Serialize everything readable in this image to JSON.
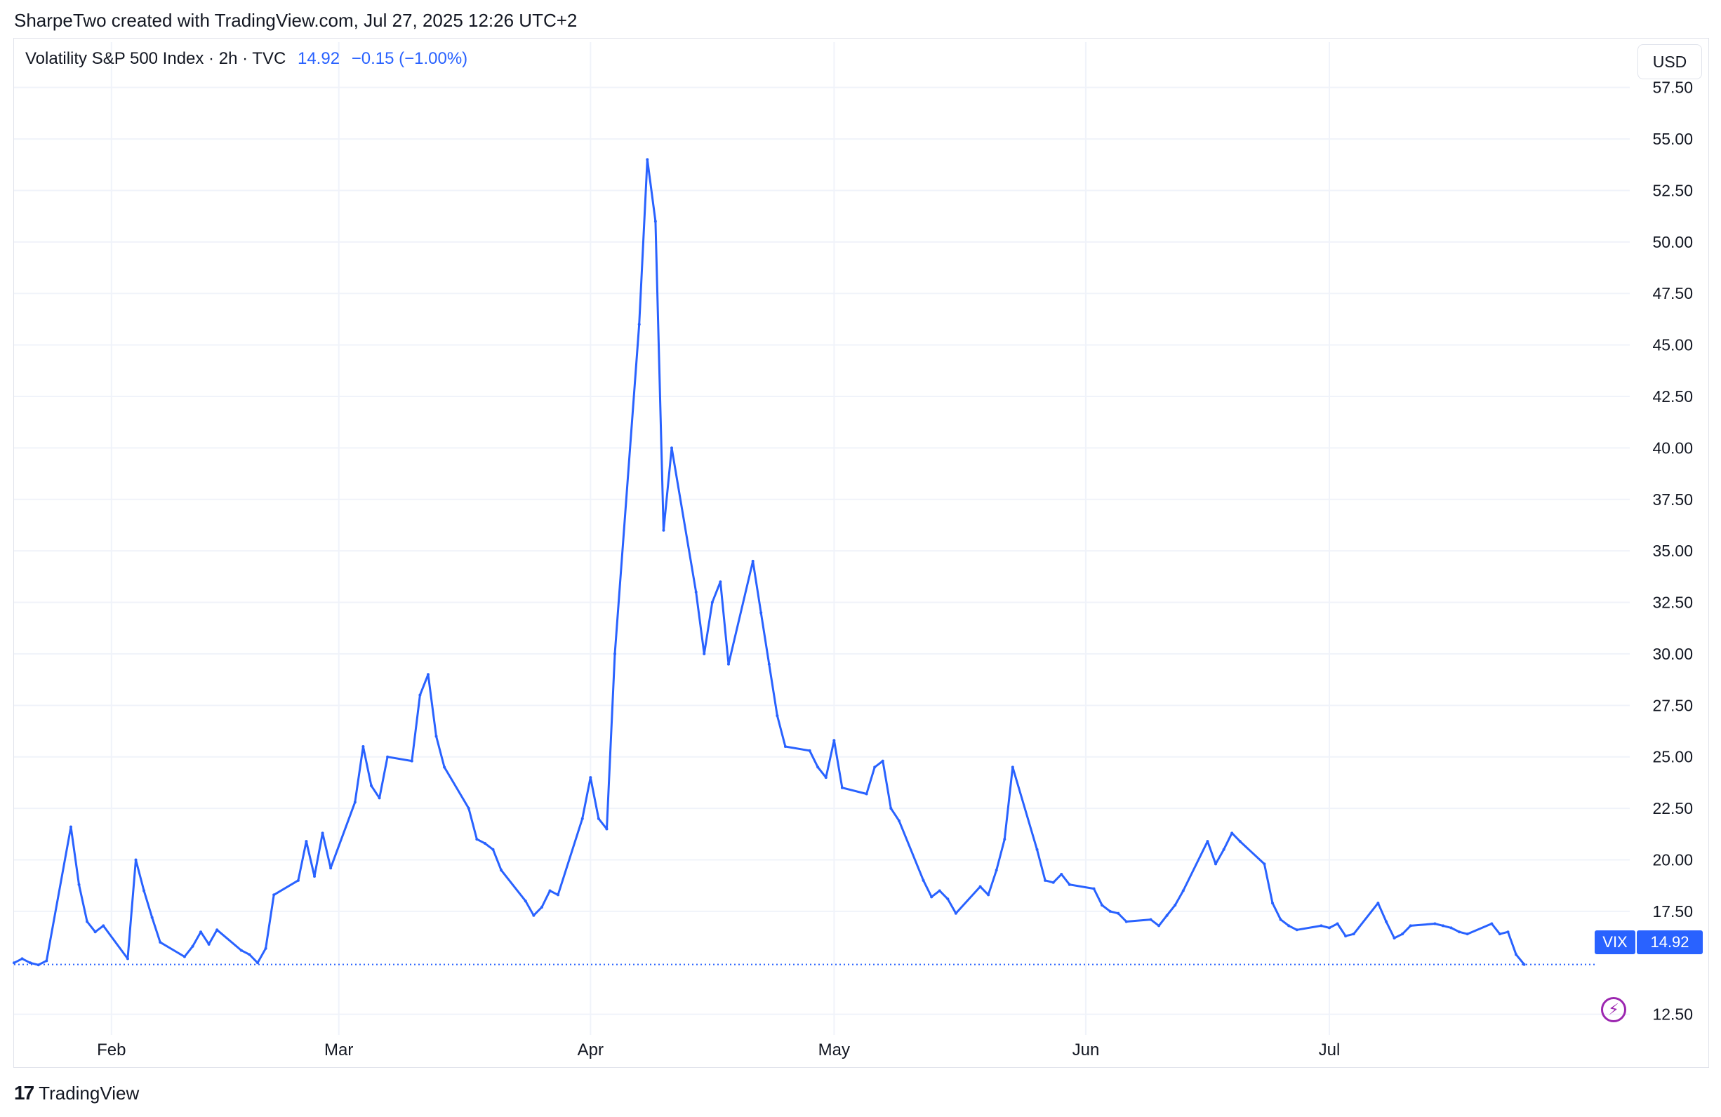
{
  "header": {
    "caption": "SharpeTwo created with TradingView.com, Jul 27, 2025 12:26 UTC+2"
  },
  "legend": {
    "symbol": "Volatility S&P 500 Index · 2h · TVC",
    "last": "14.92",
    "change": "−0.15 (−1.00%)"
  },
  "toolbar": {
    "currency": "USD"
  },
  "price_label": {
    "ticker": "VIX",
    "value": "14.92"
  },
  "footer": {
    "brand": "TradingView",
    "logo_mark": "17"
  },
  "colors": {
    "line": "#2962ff",
    "grid": "#f0f3fa",
    "purple": "#9c27b0"
  },
  "chart_data": {
    "type": "line",
    "series": [
      {
        "name": "VIX",
        "x": [
          "2025-01-20",
          "2025-01-21",
          "2025-01-22",
          "2025-01-23",
          "2025-01-24",
          "2025-01-27",
          "2025-01-28",
          "2025-01-29",
          "2025-01-30",
          "2025-01-31",
          "2025-02-03",
          "2025-02-04",
          "2025-02-05",
          "2025-02-06",
          "2025-02-07",
          "2025-02-10",
          "2025-02-11",
          "2025-02-12",
          "2025-02-13",
          "2025-02-14",
          "2025-02-17",
          "2025-02-18",
          "2025-02-19",
          "2025-02-20",
          "2025-02-21",
          "2025-02-24",
          "2025-02-25",
          "2025-02-26",
          "2025-02-27",
          "2025-02-28",
          "2025-03-03",
          "2025-03-04",
          "2025-03-05",
          "2025-03-06",
          "2025-03-07",
          "2025-03-10",
          "2025-03-11",
          "2025-03-12",
          "2025-03-13",
          "2025-03-14",
          "2025-03-17",
          "2025-03-18",
          "2025-03-19",
          "2025-03-20",
          "2025-03-21",
          "2025-03-24",
          "2025-03-25",
          "2025-03-26",
          "2025-03-27",
          "2025-03-28",
          "2025-03-31",
          "2025-04-01",
          "2025-04-02",
          "2025-04-03",
          "2025-04-04",
          "2025-04-07",
          "2025-04-08",
          "2025-04-09",
          "2025-04-10",
          "2025-04-11",
          "2025-04-14",
          "2025-04-15",
          "2025-04-16",
          "2025-04-17",
          "2025-04-18",
          "2025-04-21",
          "2025-04-22",
          "2025-04-23",
          "2025-04-24",
          "2025-04-25",
          "2025-04-28",
          "2025-04-29",
          "2025-04-30",
          "2025-05-01",
          "2025-05-02",
          "2025-05-05",
          "2025-05-06",
          "2025-05-07",
          "2025-05-08",
          "2025-05-09",
          "2025-05-12",
          "2025-05-13",
          "2025-05-14",
          "2025-05-15",
          "2025-05-16",
          "2025-05-19",
          "2025-05-20",
          "2025-05-21",
          "2025-05-22",
          "2025-05-23",
          "2025-05-26",
          "2025-05-27",
          "2025-05-28",
          "2025-05-29",
          "2025-05-30",
          "2025-06-02",
          "2025-06-03",
          "2025-06-04",
          "2025-06-05",
          "2025-06-06",
          "2025-06-09",
          "2025-06-10",
          "2025-06-11",
          "2025-06-12",
          "2025-06-13",
          "2025-06-16",
          "2025-06-17",
          "2025-06-18",
          "2025-06-19",
          "2025-06-20",
          "2025-06-23",
          "2025-06-24",
          "2025-06-25",
          "2025-06-26",
          "2025-06-27",
          "2025-06-30",
          "2025-07-01",
          "2025-07-02",
          "2025-07-03",
          "2025-07-04",
          "2025-07-07",
          "2025-07-08",
          "2025-07-09",
          "2025-07-10",
          "2025-07-11",
          "2025-07-14",
          "2025-07-15",
          "2025-07-16",
          "2025-07-17",
          "2025-07-18",
          "2025-07-21",
          "2025-07-22",
          "2025-07-23",
          "2025-07-24",
          "2025-07-25"
        ],
        "values": [
          15.0,
          15.2,
          15.0,
          14.9,
          15.1,
          21.6,
          18.8,
          17.0,
          16.5,
          16.8,
          15.2,
          20.0,
          18.5,
          17.2,
          16.0,
          15.3,
          15.8,
          16.5,
          15.9,
          16.6,
          15.6,
          15.4,
          15.0,
          15.7,
          18.3,
          19.0,
          20.9,
          19.2,
          21.3,
          19.6,
          22.8,
          25.5,
          23.6,
          23.0,
          25.0,
          24.8,
          28.0,
          29.0,
          26.0,
          24.5,
          22.5,
          21.0,
          20.8,
          20.5,
          19.5,
          18.0,
          17.3,
          17.7,
          18.5,
          18.3,
          22.0,
          24.0,
          22.0,
          21.5,
          30.0,
          46.0,
          54.0,
          51.0,
          36.0,
          40.0,
          33.0,
          30.0,
          32.5,
          33.5,
          29.5,
          34.5,
          32.0,
          29.5,
          27.0,
          25.5,
          25.3,
          24.5,
          24.0,
          25.8,
          23.5,
          23.2,
          24.5,
          24.8,
          22.5,
          21.9,
          19.0,
          18.2,
          18.5,
          18.1,
          17.4,
          18.7,
          18.3,
          19.5,
          21.0,
          24.5,
          20.5,
          19.0,
          18.9,
          19.3,
          18.8,
          18.6,
          17.8,
          17.5,
          17.4,
          17.0,
          17.1,
          16.8,
          17.3,
          17.8,
          18.5,
          20.9,
          19.8,
          20.5,
          21.3,
          20.9,
          19.8,
          17.9,
          17.1,
          16.8,
          16.6,
          16.8,
          16.7,
          16.9,
          16.3,
          16.4,
          17.9,
          17.0,
          16.2,
          16.4,
          16.8,
          16.9,
          16.8,
          16.7,
          16.5,
          16.4,
          16.9,
          16.4,
          16.5,
          15.4,
          14.92
        ]
      }
    ],
    "ylim": [
      11.5,
      58.0
    ],
    "yticks": [
      "12.50",
      "17.50",
      "20.00",
      "22.50",
      "25.00",
      "27.50",
      "30.00",
      "32.50",
      "35.00",
      "37.50",
      "40.00",
      "42.50",
      "45.00",
      "47.50",
      "50.00",
      "52.50",
      "55.00",
      "57.50"
    ],
    "xticks": [
      {
        "label": "Feb",
        "date": "2025-02-01"
      },
      {
        "label": "Mar",
        "date": "2025-03-01"
      },
      {
        "label": "Apr",
        "date": "2025-04-01"
      },
      {
        "label": "May",
        "date": "2025-05-01"
      },
      {
        "label": "Jun",
        "date": "2025-06-01"
      },
      {
        "label": "Jul",
        "date": "2025-07-01"
      }
    ],
    "xrange": [
      "2025-01-20",
      "2025-08-07"
    ],
    "last_value": 14.92,
    "grid": true
  }
}
